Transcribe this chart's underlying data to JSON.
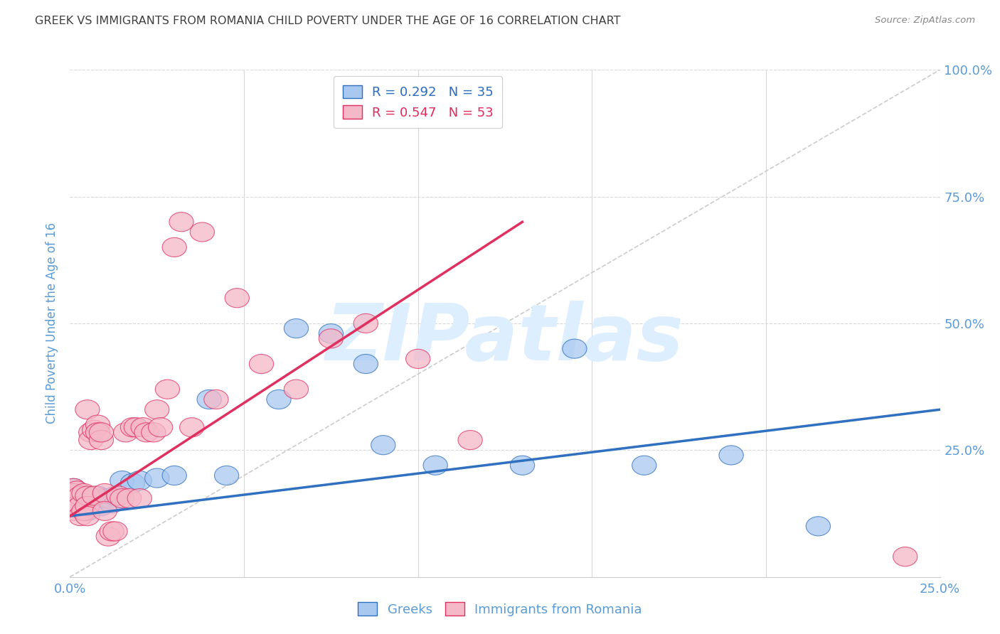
{
  "title": "GREEK VS IMMIGRANTS FROM ROMANIA CHILD POVERTY UNDER THE AGE OF 16 CORRELATION CHART",
  "source": "Source: ZipAtlas.com",
  "ylabel": "Child Poverty Under the Age of 16",
  "xlim": [
    0.0,
    0.25
  ],
  "ylim": [
    0.0,
    1.0
  ],
  "greek_R": 0.292,
  "greek_N": 35,
  "romania_R": 0.547,
  "romania_N": 53,
  "greek_color": "#a8c8f0",
  "romania_color": "#f5b8c8",
  "greek_line_color": "#3070c0",
  "romania_line_color": "#e03060",
  "axis_label_color": "#5b9bd5",
  "title_color": "#404040",
  "watermark_color": "#ddeeff",
  "watermark_text": "ZIPatlas",
  "background_color": "#ffffff",
  "grid_color": "#d8d8d8",
  "greek_trend_x": [
    0.0,
    0.25
  ],
  "greek_trend_y": [
    0.12,
    0.33
  ],
  "romania_trend_x": [
    0.0,
    0.13
  ],
  "romania_trend_y": [
    0.12,
    0.7
  ],
  "greeks_x": [
    0.001,
    0.001,
    0.002,
    0.002,
    0.003,
    0.003,
    0.004,
    0.005,
    0.005,
    0.006,
    0.007,
    0.008,
    0.009,
    0.01,
    0.011,
    0.012,
    0.013,
    0.015,
    0.018,
    0.02,
    0.025,
    0.03,
    0.04,
    0.045,
    0.06,
    0.065,
    0.075,
    0.085,
    0.09,
    0.105,
    0.13,
    0.145,
    0.165,
    0.19,
    0.215
  ],
  "greeks_y": [
    0.175,
    0.16,
    0.155,
    0.14,
    0.16,
    0.155,
    0.15,
    0.13,
    0.16,
    0.155,
    0.155,
    0.16,
    0.14,
    0.155,
    0.155,
    0.145,
    0.16,
    0.19,
    0.185,
    0.19,
    0.195,
    0.2,
    0.35,
    0.2,
    0.35,
    0.49,
    0.48,
    0.42,
    0.26,
    0.22,
    0.22,
    0.45,
    0.22,
    0.24,
    0.1
  ],
  "romania_x": [
    0.001,
    0.001,
    0.001,
    0.002,
    0.002,
    0.003,
    0.003,
    0.003,
    0.004,
    0.004,
    0.005,
    0.005,
    0.005,
    0.005,
    0.006,
    0.006,
    0.007,
    0.007,
    0.008,
    0.008,
    0.009,
    0.009,
    0.01,
    0.01,
    0.011,
    0.012,
    0.013,
    0.014,
    0.015,
    0.016,
    0.017,
    0.018,
    0.019,
    0.02,
    0.021,
    0.022,
    0.024,
    0.025,
    0.026,
    0.028,
    0.03,
    0.032,
    0.035,
    0.038,
    0.042,
    0.048,
    0.055,
    0.065,
    0.075,
    0.085,
    0.1,
    0.115,
    0.24
  ],
  "romania_y": [
    0.175,
    0.165,
    0.13,
    0.17,
    0.14,
    0.16,
    0.14,
    0.12,
    0.165,
    0.13,
    0.33,
    0.16,
    0.14,
    0.12,
    0.285,
    0.27,
    0.16,
    0.29,
    0.3,
    0.285,
    0.27,
    0.285,
    0.165,
    0.13,
    0.08,
    0.09,
    0.09,
    0.16,
    0.155,
    0.285,
    0.155,
    0.295,
    0.295,
    0.155,
    0.295,
    0.285,
    0.285,
    0.33,
    0.295,
    0.37,
    0.65,
    0.7,
    0.295,
    0.68,
    0.35,
    0.55,
    0.42,
    0.37,
    0.47,
    0.5,
    0.43,
    0.27,
    0.04
  ]
}
